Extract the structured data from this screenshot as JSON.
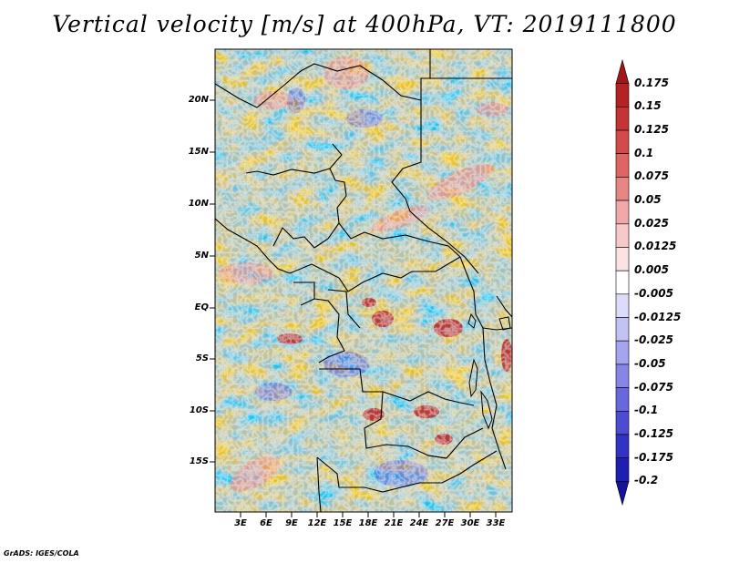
{
  "title": "Vertical velocity [m/s] at 400hPa, VT: 2019111800",
  "footer": "GrADS: IGES/COLA",
  "lat_labels": [
    "20N",
    "15N",
    "10N",
    "5N",
    "EQ",
    "5S",
    "10S",
    "15S"
  ],
  "lon_labels": [
    "3E",
    "6E",
    "9E",
    "12E",
    "15E",
    "18E",
    "21E",
    "24E",
    "27E",
    "30E",
    "33E"
  ],
  "colorbar": {
    "labels": [
      "0.175",
      "0.15",
      "0.125",
      "0.1",
      "0.075",
      "0.05",
      "0.025",
      "0.0125",
      "0.005",
      "-0.005",
      "-0.0125",
      "-0.025",
      "-0.05",
      "-0.075",
      "-0.1",
      "-0.125",
      "-0.175",
      "-0.2"
    ],
    "colors": [
      "#a01717",
      "#b52222",
      "#c53434",
      "#d34a4a",
      "#df6565",
      "#e88585",
      "#f1a8a8",
      "#f7c9c9",
      "#fbe3e3",
      "#ffffff",
      "#dcdcfa",
      "#c2c2f5",
      "#a4a4ef",
      "#8686e8",
      "#6868de",
      "#4c4cd2",
      "#3232c3",
      "#1e1eaf",
      "#14149a"
    ]
  }
}
